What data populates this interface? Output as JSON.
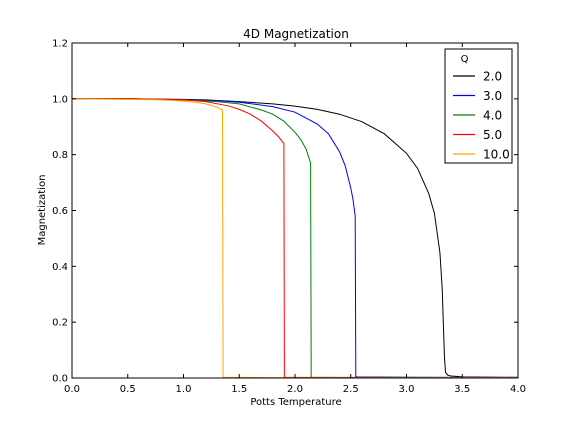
{
  "chart_data": {
    "type": "line",
    "title": "4D Magnetization",
    "xlabel": "Potts Temperature",
    "ylabel": "Magnetization",
    "xlim": [
      0.0,
      4.0
    ],
    "ylim": [
      0.0,
      1.2
    ],
    "xticks": [
      "0.0",
      "0.5",
      "1.0",
      "1.5",
      "2.0",
      "2.5",
      "3.0",
      "3.5",
      "4.0"
    ],
    "yticks": [
      "0.0",
      "0.2",
      "0.4",
      "0.6",
      "0.8",
      "1.0",
      "1.2"
    ],
    "grid": false,
    "legend": {
      "title": "Q",
      "placement": "top-right"
    },
    "series": [
      {
        "name": "2.0",
        "color": "#000000",
        "x": [
          0.0,
          0.5,
          1.0,
          1.2,
          1.5,
          1.8,
          2.0,
          2.2,
          2.4,
          2.6,
          2.8,
          3.0,
          3.1,
          3.2,
          3.25,
          3.3,
          3.32,
          3.34,
          3.35,
          3.37,
          3.4,
          3.5,
          4.0
        ],
        "y": [
          1.0,
          1.0,
          0.998,
          0.996,
          0.99,
          0.982,
          0.974,
          0.962,
          0.945,
          0.918,
          0.875,
          0.805,
          0.75,
          0.66,
          0.59,
          0.45,
          0.32,
          0.08,
          0.02,
          0.01,
          0.007,
          0.004,
          0.002
        ]
      },
      {
        "name": "3.0",
        "color": "#0000ff",
        "x": [
          0.0,
          0.5,
          1.0,
          1.3,
          1.5,
          1.8,
          2.0,
          2.2,
          2.3,
          2.4,
          2.45,
          2.5,
          2.52,
          2.54,
          2.545,
          2.56,
          3.0,
          3.5,
          4.0
        ],
        "y": [
          1.0,
          1.0,
          0.997,
          0.993,
          0.988,
          0.972,
          0.952,
          0.91,
          0.875,
          0.81,
          0.76,
          0.68,
          0.64,
          0.58,
          0.005,
          0.004,
          0.003,
          0.002,
          0.002
        ]
      },
      {
        "name": "4.0",
        "color": "#008000",
        "x": [
          0.0,
          0.5,
          1.0,
          1.3,
          1.5,
          1.7,
          1.8,
          1.9,
          2.0,
          2.05,
          2.1,
          2.14,
          2.145,
          2.2,
          3.0,
          4.0
        ],
        "y": [
          1.0,
          1.0,
          0.997,
          0.99,
          0.982,
          0.96,
          0.945,
          0.92,
          0.88,
          0.855,
          0.82,
          0.77,
          0.003,
          0.002,
          0.002,
          0.001
        ]
      },
      {
        "name": "5.0",
        "color": "#ff0000",
        "x": [
          0.0,
          0.5,
          1.0,
          1.2,
          1.4,
          1.5,
          1.6,
          1.7,
          1.8,
          1.85,
          1.88,
          1.9,
          1.905,
          2.0,
          3.0,
          4.0
        ],
        "y": [
          1.0,
          1.0,
          0.996,
          0.99,
          0.975,
          0.962,
          0.945,
          0.92,
          0.885,
          0.865,
          0.85,
          0.84,
          0.002,
          0.002,
          0.001,
          0.001
        ]
      },
      {
        "name": "10.0",
        "color": "#ffa500",
        "x": [
          0.0,
          0.5,
          0.8,
          1.0,
          1.1,
          1.2,
          1.3,
          1.35,
          1.355,
          1.5,
          2.0,
          3.0,
          4.0
        ],
        "y": [
          1.0,
          0.998,
          0.996,
          0.992,
          0.988,
          0.982,
          0.97,
          0.96,
          0.002,
          0.002,
          0.001,
          0.001,
          0.001
        ]
      }
    ]
  }
}
